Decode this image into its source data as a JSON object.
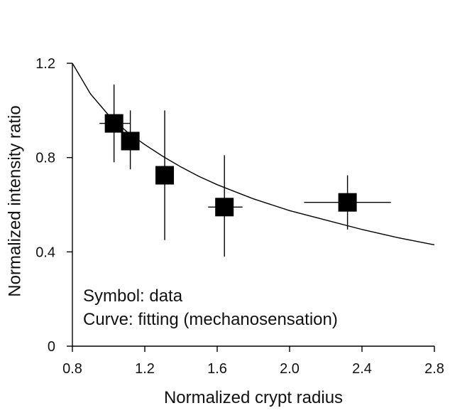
{
  "chart_data": {
    "type": "scatter",
    "xlabel": "Normalized crypt radius",
    "ylabel": "Normalized intensity ratio",
    "xlim": [
      0.8,
      2.8
    ],
    "ylim": [
      0,
      1.2
    ],
    "xticks": [
      0.8,
      1.2,
      1.6,
      2.0,
      2.4,
      2.8
    ],
    "yticks": [
      0,
      0.4,
      0.8,
      1.2
    ],
    "xtick_labels": [
      "0.8",
      "1.2",
      "1.6",
      "2.0",
      "2.4",
      "2.8"
    ],
    "ytick_labels": [
      "0",
      "0.4",
      "0.8",
      "1.2"
    ],
    "grid": false,
    "annotations": [
      "Symbol: data",
      "Curve: fitting (mechanosensation)"
    ],
    "series": [
      {
        "kind": "points",
        "marker": "square",
        "color": "#000000",
        "points": [
          {
            "x": 1.03,
            "y": 0.945,
            "xerr": [
              0.95,
              1.12
            ],
            "yerr": [
              0.78,
              1.11
            ]
          },
          {
            "x": 1.12,
            "y": 0.87,
            "xerr": [
              1.12,
              1.12
            ],
            "yerr": [
              0.75,
              1.0
            ]
          },
          {
            "x": 1.31,
            "y": 0.725,
            "xerr": [
              1.31,
              1.31
            ],
            "yerr": [
              0.45,
              1.0
            ]
          },
          {
            "x": 1.64,
            "y": 0.59,
            "xerr": [
              1.55,
              1.74
            ],
            "yerr": [
              0.38,
              0.81
            ]
          },
          {
            "x": 2.32,
            "y": 0.61,
            "xerr": [
              2.08,
              2.56
            ],
            "yerr": [
              0.495,
              0.725
            ]
          }
        ]
      },
      {
        "kind": "curve",
        "color": "#000000",
        "x": [
          0.8,
          0.9,
          1.0,
          1.1,
          1.2,
          1.3,
          1.4,
          1.5,
          1.6,
          1.7,
          1.8,
          1.9,
          2.0,
          2.2,
          2.4,
          2.6,
          2.8
        ],
        "y": [
          1.2,
          1.07,
          0.98,
          0.91,
          0.855,
          0.805,
          0.76,
          0.72,
          0.685,
          0.655,
          0.625,
          0.6,
          0.575,
          0.535,
          0.495,
          0.46,
          0.43
        ]
      }
    ]
  }
}
